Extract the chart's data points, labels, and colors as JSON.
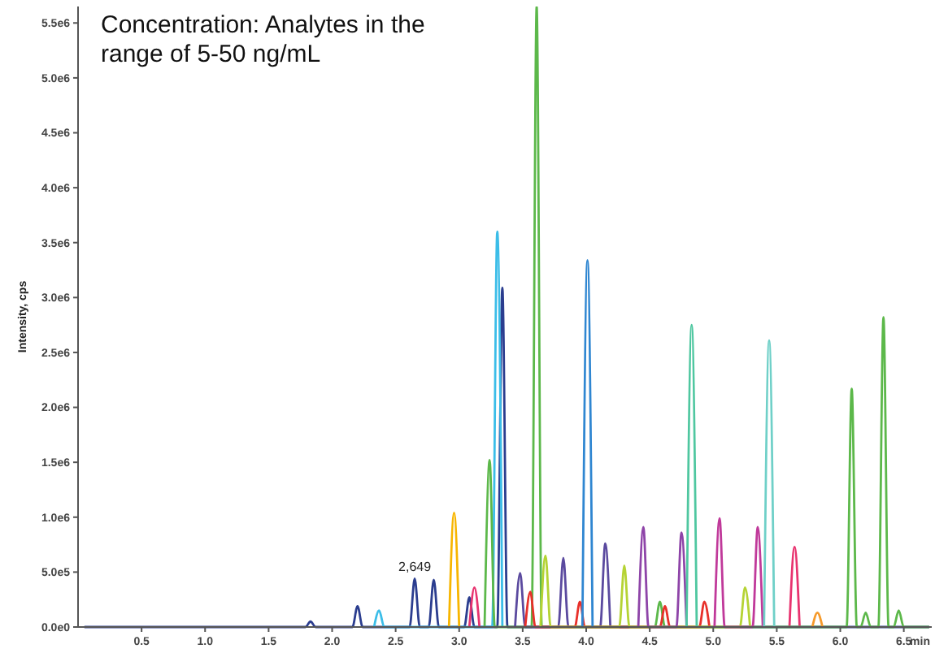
{
  "chart_data": {
    "type": "line",
    "title": "Concentration: Analytes in the range of 5-50 ng/mL",
    "xlabel": "min",
    "ylabel": "Intensity, cps",
    "xlim": [
      0,
      6.72
    ],
    "ylim": [
      0,
      5650000
    ],
    "xticks": [
      0.5,
      {
        "value": 1,
        "label": "1.0"
      },
      1.5,
      {
        "value": 2,
        "label": "2.0"
      },
      2.5,
      {
        "value": 3,
        "label": "3.0"
      },
      3.5,
      {
        "value": 4,
        "label": "4.0"
      },
      4.5,
      {
        "value": 5,
        "label": "5.0"
      },
      5.5,
      {
        "value": 6,
        "label": "6.0"
      },
      6.5
    ],
    "yticks": [
      {
        "value": 0,
        "label": "0.0e0"
      },
      {
        "value": 500000,
        "label": "5.0e5"
      },
      {
        "value": 1000000,
        "label": "1.0e6"
      },
      {
        "value": 1500000,
        "label": "1.5e6"
      },
      {
        "value": 2000000,
        "label": "2.0e6"
      },
      {
        "value": 2500000,
        "label": "2.5e6"
      },
      {
        "value": 3000000,
        "label": "3.0e6"
      },
      {
        "value": 3500000,
        "label": "3.5e6"
      },
      {
        "value": 4000000,
        "label": "4.0e6"
      },
      {
        "value": 4500000,
        "label": "4.5e6"
      },
      {
        "value": 5000000,
        "label": "5.0e6"
      },
      {
        "value": 5500000,
        "label": "5.5e6"
      }
    ],
    "annotations": [
      {
        "text": "2,649",
        "x": 2.65,
        "y": 440000
      }
    ],
    "series": [
      {
        "color": "#2b3d8f",
        "x": [
          0.05,
          1.79,
          1.83,
          1.87,
          2.16,
          2.2,
          2.24,
          2.61,
          2.65,
          2.69,
          2.76,
          2.8,
          2.84,
          3.04,
          3.08,
          3.12,
          3.3,
          3.34,
          3.38,
          6.7
        ],
        "values": [
          0,
          0,
          50000,
          0,
          0,
          190000,
          0,
          0,
          440000,
          0,
          0,
          430000,
          0,
          0,
          270000,
          0,
          0,
          3090000,
          0,
          0
        ]
      },
      {
        "color": "#3bbde8",
        "x": [
          2.33,
          2.37,
          2.41,
          3.26,
          3.3,
          3.34
        ],
        "values": [
          0,
          150000,
          0,
          0,
          3600000,
          0
        ]
      },
      {
        "color": "#f7b500",
        "x": [
          2.92,
          2.96,
          3.0
        ],
        "values": [
          0,
          1040000,
          0
        ]
      },
      {
        "color": "#e8336f",
        "x": [
          3.08,
          3.12,
          3.16,
          4.4,
          5.6,
          5.64,
          5.68
        ],
        "values": [
          0,
          360000,
          0,
          null,
          0,
          730000,
          0
        ]
      },
      {
        "color": "#5cb84a",
        "x": [
          3.2,
          3.24,
          3.28,
          3.57,
          3.61,
          3.65,
          4.54,
          4.58,
          4.62,
          6.05,
          6.09,
          6.13,
          6.16,
          6.2,
          6.24,
          6.3,
          6.34,
          6.38,
          6.42,
          6.46,
          6.5,
          6.7
        ],
        "values": [
          0,
          1520000,
          0,
          0,
          5650000,
          0,
          0,
          230000,
          0,
          0,
          2170000,
          0,
          0,
          130000,
          0,
          0,
          2820000,
          0,
          0,
          150000,
          0,
          0
        ]
      },
      {
        "color": "#5b4a9f",
        "x": [
          3.44,
          3.48,
          3.52,
          3.78,
          3.82,
          3.86,
          4.11,
          4.15,
          4.19
        ],
        "values": [
          0,
          490000,
          0,
          0,
          630000,
          0,
          0,
          760000,
          0
        ]
      },
      {
        "color": "#e8302a",
        "x": [
          3.52,
          3.56,
          3.6,
          3.91,
          3.95,
          3.99,
          4.58,
          4.62,
          4.66,
          4.89,
          4.93,
          4.97
        ],
        "values": [
          0,
          320000,
          0,
          0,
          230000,
          0,
          0,
          190000,
          0,
          0,
          230000,
          0
        ]
      },
      {
        "color": "#b5d334",
        "x": [
          3.64,
          3.68,
          3.72,
          4.26,
          4.3,
          4.34,
          5.21,
          5.25,
          5.29
        ],
        "values": [
          0,
          650000,
          0,
          0,
          560000,
          0,
          0,
          360000,
          0
        ]
      },
      {
        "color": "#2f86d1",
        "x": [
          3.97,
          4.01,
          4.05
        ],
        "values": [
          0,
          3340000,
          0
        ]
      },
      {
        "color": "#8e44a8",
        "x": [
          4.41,
          4.45,
          4.49,
          4.71,
          4.75,
          4.79
        ],
        "values": [
          0,
          910000,
          0,
          0,
          860000,
          0
        ]
      },
      {
        "color": "#4fc7a0",
        "x": [
          4.79,
          4.83,
          4.87
        ],
        "values": [
          0,
          2750000,
          0
        ]
      },
      {
        "color": "#c0399a",
        "x": [
          5.01,
          5.05,
          5.09,
          5.31,
          5.35,
          5.39
        ],
        "values": [
          0,
          990000,
          0,
          0,
          910000,
          0
        ]
      },
      {
        "color": "#6fd0c8",
        "x": [
          5.4,
          5.44,
          5.48
        ],
        "values": [
          0,
          2610000,
          0
        ]
      },
      {
        "color": "#f59a2b",
        "x": [
          5.78,
          5.82,
          5.86
        ],
        "values": [
          0,
          130000,
          0
        ]
      }
    ]
  }
}
